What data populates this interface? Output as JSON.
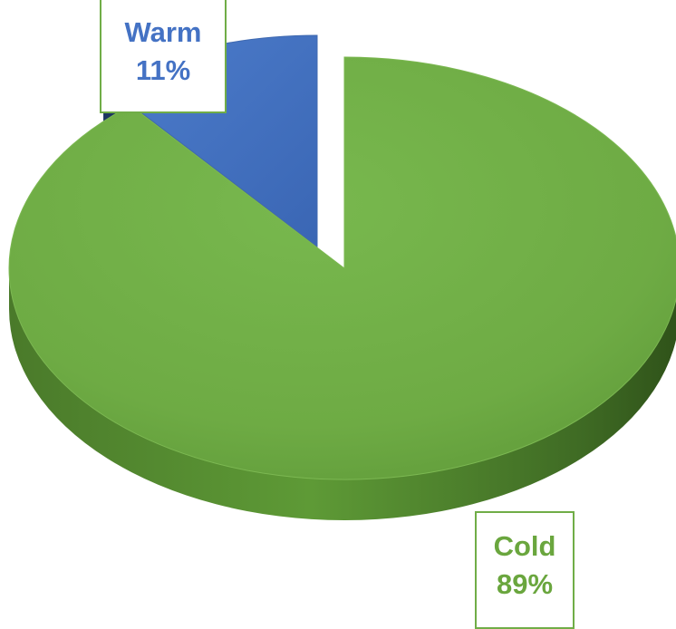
{
  "chart_data": {
    "type": "pie",
    "style": "3d-exploded",
    "slices": [
      {
        "category": "Warm",
        "value": 11,
        "label": "11%",
        "color": "#4472c4"
      },
      {
        "category": "Cold",
        "value": 89,
        "label": "89%",
        "color": "#70ad47"
      }
    ],
    "label_border_color": "#70ad47",
    "legend": "none",
    "title": ""
  }
}
